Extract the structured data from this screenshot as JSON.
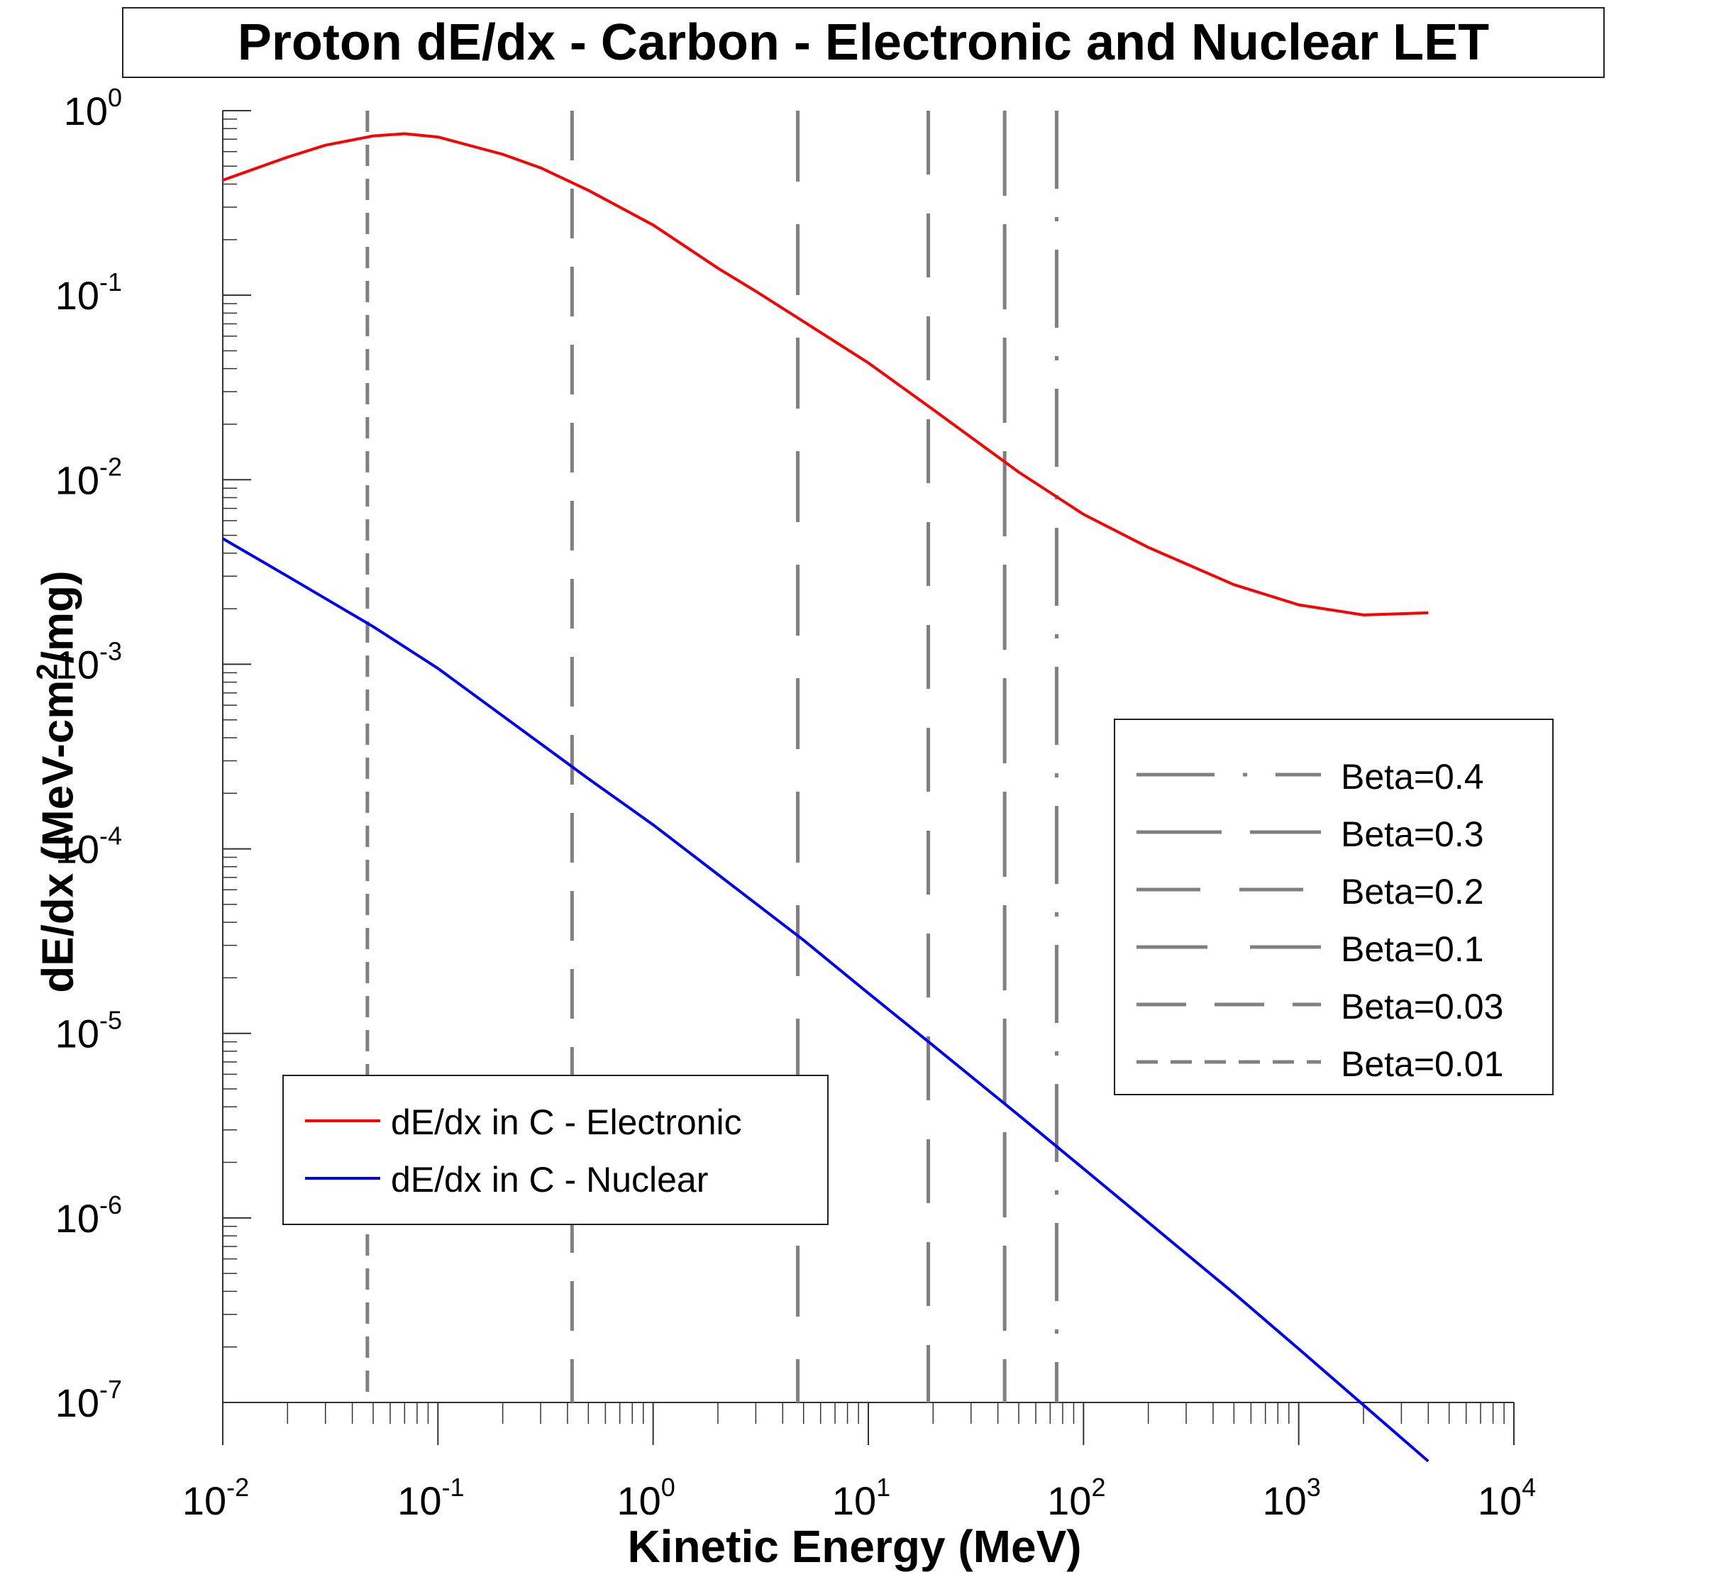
{
  "chart_data": {
    "type": "line",
    "title": "Proton dE/dx - Carbon - Electronic and Nuclear LET",
    "xlabel": "Kinetic Energy (MeV)",
    "ylabel_main": "dE/dx (MeV-cm",
    "ylabel_sup": "2",
    "ylabel_end": "/mg)",
    "xscale": "log",
    "yscale": "log",
    "xlim": [
      0.01,
      10000
    ],
    "ylim": [
      1e-07,
      1
    ],
    "x_ticks": [
      {
        "base": "10",
        "exp": "-2"
      },
      {
        "base": "10",
        "exp": "-1"
      },
      {
        "base": "10",
        "exp": "0"
      },
      {
        "base": "10",
        "exp": "1"
      },
      {
        "base": "10",
        "exp": "2"
      },
      {
        "base": "10",
        "exp": "3"
      },
      {
        "base": "10",
        "exp": "4"
      }
    ],
    "y_ticks": [
      {
        "base": "10",
        "exp": "0"
      },
      {
        "base": "10",
        "exp": "-1"
      },
      {
        "base": "10",
        "exp": "-2"
      },
      {
        "base": "10",
        "exp": "-3"
      },
      {
        "base": "10",
        "exp": "-4"
      },
      {
        "base": "10",
        "exp": "-5"
      },
      {
        "base": "10",
        "exp": "-6"
      },
      {
        "base": "10",
        "exp": "-7"
      }
    ],
    "series": [
      {
        "name": "dE/dx in C - Electronic",
        "color": "#ff0000",
        "x": [
          0.01,
          0.02,
          0.03,
          0.05,
          0.07,
          0.1,
          0.2,
          0.3,
          0.5,
          1,
          2,
          3,
          5,
          10,
          20,
          50,
          100,
          200,
          500,
          1000,
          2000,
          4000
        ],
        "y": [
          0.42,
          0.56,
          0.65,
          0.73,
          0.75,
          0.72,
          0.58,
          0.49,
          0.37,
          0.24,
          0.14,
          0.105,
          0.072,
          0.043,
          0.024,
          0.011,
          0.0065,
          0.0043,
          0.0027,
          0.0021,
          0.00185,
          0.0019
        ]
      },
      {
        "name": "dE/dx in C - Nuclear",
        "color": "#0000ff",
        "x": [
          0.01,
          0.02,
          0.05,
          0.1,
          0.5,
          1,
          5,
          10,
          20,
          50,
          100,
          500,
          1000,
          4000
        ],
        "y": [
          0.0048,
          0.003,
          0.0016,
          0.00095,
          0.00024,
          0.000135,
          3.2e-05,
          1.65e-05,
          8.6e-06,
          3.6e-06,
          1.85e-06,
          3.9e-07,
          1.95e-07,
          4.8e-08
        ]
      }
    ],
    "beta_lines": [
      {
        "name": "Beta=0.4",
        "energy_mev": 75,
        "style": "long-short"
      },
      {
        "name": "Beta=0.3",
        "energy_mev": 43,
        "style": "long-dash"
      },
      {
        "name": "Beta=0.2",
        "energy_mev": 19,
        "style": "dash-dot-long"
      },
      {
        "name": "Beta=0.1",
        "energy_mev": 4.7,
        "style": "long-gap"
      },
      {
        "name": "Beta=0.03",
        "energy_mev": 0.42,
        "style": "dash-medium"
      },
      {
        "name": "Beta=0.01",
        "energy_mev": 0.047,
        "style": "short-dash"
      }
    ],
    "beta_color": "#808080",
    "legend_curves_position": "bottom-left",
    "legend_beta_position": "right"
  }
}
